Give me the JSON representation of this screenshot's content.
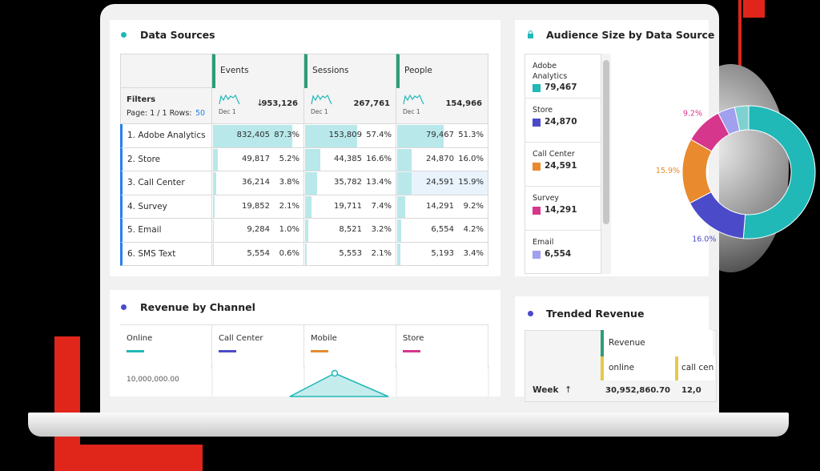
{
  "data_sources": {
    "title": "Data Sources",
    "columns": [
      "Events",
      "Sessions",
      "People"
    ],
    "filters": {
      "label": "Filters",
      "page": "Page: 1 / 1 Rows:",
      "rows": "50",
      "totals": [
        {
          "date": "Dec 1",
          "value": "953,126"
        },
        {
          "date": "Dec 1",
          "value": "267,761"
        },
        {
          "date": "Dec 1",
          "value": "154,966"
        }
      ]
    },
    "rows": [
      {
        "name": "1. Adobe Analytics",
        "cells": [
          {
            "value": "832,405",
            "share": 87.3,
            "share_label": "87.3%"
          },
          {
            "value": "153,809",
            "share": 57.4,
            "share_label": "57.4%"
          },
          {
            "value": "79,467",
            "share": 51.3,
            "share_label": "51.3%"
          }
        ]
      },
      {
        "name": "2. Store",
        "cells": [
          {
            "value": "49,817",
            "share": 5.2,
            "share_label": "5.2%"
          },
          {
            "value": "44,385",
            "share": 16.6,
            "share_label": "16.6%"
          },
          {
            "value": "24,870",
            "share": 16.0,
            "share_label": "16.0%"
          }
        ]
      },
      {
        "name": "3. Call Center",
        "cells": [
          {
            "value": "36,214",
            "share": 3.8,
            "share_label": "3.8%"
          },
          {
            "value": "35,782",
            "share": 13.4,
            "share_label": "13.4%"
          },
          {
            "value": "24,591",
            "share": 15.9,
            "share_label": "15.9%"
          }
        ]
      },
      {
        "name": "4. Survey",
        "cells": [
          {
            "value": "19,852",
            "share": 2.1,
            "share_label": "2.1%"
          },
          {
            "value": "19,711",
            "share": 7.4,
            "share_label": "7.4%"
          },
          {
            "value": "14,291",
            "share": 9.2,
            "share_label": "9.2%"
          }
        ]
      },
      {
        "name": "5. Email",
        "cells": [
          {
            "value": "9,284",
            "share": 1.0,
            "share_label": "1.0%"
          },
          {
            "value": "8,521",
            "share": 3.2,
            "share_label": "3.2%"
          },
          {
            "value": "6,554",
            "share": 4.2,
            "share_label": "4.2%"
          }
        ]
      },
      {
        "name": "6. SMS Text",
        "cells": [
          {
            "value": "5,554",
            "share": 0.6,
            "share_label": "0.6%"
          },
          {
            "value": "5,553",
            "share": 2.1,
            "share_label": "2.1%"
          },
          {
            "value": "5,193",
            "share": 3.4,
            "share_label": "3.4%"
          }
        ]
      }
    ]
  },
  "audience": {
    "title": "Audience Size by Data Source",
    "items": [
      {
        "name": "Adobe Analytics",
        "value": "79,467",
        "color": "#21b8b8"
      },
      {
        "name": "Store",
        "value": "24,870",
        "color": "#4b4bc9"
      },
      {
        "name": "Call Center",
        "value": "24,591",
        "color": "#e88a2d"
      },
      {
        "name": "Survey",
        "value": "14,291",
        "color": "#d6368c"
      },
      {
        "name": "Email",
        "value": "6,554",
        "color": "#a0a0ee"
      }
    ],
    "donut": {
      "values": [
        51.3,
        16.0,
        15.9,
        9.2,
        4.2,
        3.4
      ],
      "value_labels": [
        null,
        "16.0%",
        "15.9%",
        "9.2%",
        null,
        null
      ],
      "colors": [
        "#21b8b8",
        "#4b4bc9",
        "#e88a2d",
        "#d6368c",
        "#a0a0ee",
        "#7fd1d1"
      ]
    }
  },
  "revenue": {
    "title": "Revenue by Channel",
    "channels": [
      {
        "name": "Online",
        "color": "#21b8b8"
      },
      {
        "name": "Call Center",
        "color": "#4b4bc9"
      },
      {
        "name": "Mobile",
        "color": "#e88a2d"
      },
      {
        "name": "Store",
        "color": "#d6368c"
      }
    ],
    "axis_label": "10,000,000.00"
  },
  "trended": {
    "title": "Trended Revenue",
    "metric": "Revenue",
    "columns": [
      "online",
      "call cen"
    ],
    "row": {
      "label": "Week",
      "values": [
        "30,952,860.70",
        "12,0"
      ]
    }
  }
}
